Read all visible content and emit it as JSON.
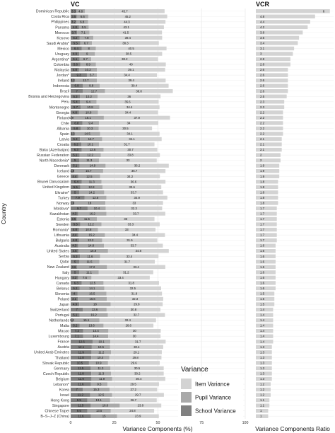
{
  "colors": {
    "item": "#d3d3d3",
    "pupil": "#a9a9a9",
    "school": "#808080",
    "ratio": "#d3d3d3",
    "grid": "#ebebeb",
    "panel": "#ffffff"
  },
  "chart_data": [
    {
      "type": "bar",
      "stacked": true,
      "orientation": "horizontal",
      "title": "VC",
      "xlabel": "Variance Components (%)",
      "ylabel": "Country",
      "xlim": [
        0,
        100
      ],
      "xticks": [
        "0",
        "25",
        "50",
        "75",
        "100"
      ],
      "legend": {
        "title": "Variance",
        "position": "bottom-right",
        "entries": [
          "Item Variance",
          "Pupil Variance",
          "School Variance"
        ]
      },
      "categories": [
        "Dominican Republic",
        "Costa Rica",
        "Philippines",
        "Panama",
        "Morocco",
        "Kosovo",
        "Saudi Arabia*",
        "Mexico",
        "Uruguay",
        "Argentina*",
        "Colombia",
        "Malaysia",
        "Jordan*",
        "Ireland",
        "Indonesia",
        "Brazil",
        "Bosnia and Herzegovina",
        "Peru",
        "Montenegro",
        "Georgia",
        "Finland",
        "Chile",
        "Albania",
        "Spain",
        "Latvia",
        "Croatia",
        "Baku (Azerbaijan)",
        "Russian Federation",
        "North Macedonia*",
        "Denmark",
        "Iceland",
        "Greece",
        "Brunei Darussalam",
        "United Kingdom",
        "Ukraine*",
        "Turkey",
        "Norway",
        "Moldova*",
        "Kazakhstan",
        "Estonia",
        "Sweden",
        "Romania*",
        "Lithuania",
        "Bulgaria",
        "Australia",
        "United States",
        "Serbia",
        "Qatar",
        "New Zealand",
        "Italy",
        "Hungary",
        "Canada",
        "Belarus",
        "Slovenia",
        "Poland",
        "Japan",
        "Switzerland",
        "Portugal",
        "Netherlands",
        "Malta",
        "Macao",
        "Luxembourg",
        "France",
        "Austria",
        "United Arab Emirates",
        "Thailand",
        "Slovak Republic",
        "Germany",
        "Czech Republic",
        "Belgium",
        "Lebanon*",
        "Korea",
        "Israel",
        "Hong Kong",
        "Singapore",
        "Chinese Taipei",
        "B–S–J–Z (China)"
      ],
      "series": [
        {
          "name": "School Variance",
          "values": [
            3.3,
            3.5,
            3.2,
            4.8,
            3.7,
            5.2,
            5.5,
            6.4,
            4.9,
            5.1,
            5.6,
            4.8,
            9.3,
            2.3,
            6.9,
            7,
            5.3,
            5.4,
            5.7,
            4.8,
            0.9,
            6.8,
            5.8,
            2.3,
            5.3,
            6.2,
            6.3,
            5.1,
            5,
            5.1,
            1.9,
            4.4,
            6.4,
            5.5,
            5,
            7.9,
            1.9,
            9.7,
            4.3,
            3.5,
            5.5,
            4.8,
            4.4,
            4.8,
            4.3,
            4.5,
            5.3,
            5,
            3.6,
            5,
            4.3,
            6.3,
            5.2,
            4,
            4.1,
            4.9,
            7,
            5.1,
            1.4,
            5.2,
            7.2,
            7.1,
            12.6,
            12.1,
            11.9,
            11.8,
            10.5,
            11.5,
            11.8,
            11.9,
            11.6,
            7,
            11.2,
            9.5,
            11.5,
            9.5,
            11.6
          ]
        },
        {
          "name": "Pupil Variance",
          "values": [
            4.8,
            6.6,
            6.8,
            5.5,
            7.1,
            7.8,
            6.7,
            8,
            9,
            6.7,
            8.9,
            10.2,
            5.7,
            12.7,
            9.8,
            12.7,
            10.2,
            9.4,
            10.8,
            10.8,
            18.1,
            9.4,
            10.3,
            14.5,
            12.7,
            10.1,
            12.6,
            12.2,
            11.3,
            14.9,
            16.7,
            12.5,
            11.3,
            12.8,
            14.2,
            12.6,
            18,
            10.4,
            16.2,
            11.5,
            12.2,
            10.8,
            15.2,
            13.2,
            14.8,
            16.9,
            11.6,
            11.5,
            17.2,
            11.1,
            7.6,
            12.5,
            14.1,
            16.5,
            16.6,
            18,
            13.6,
            16.2,
            15.1,
            13.6,
            14.4,
            14.4,
            10.1,
            10.5,
            11.2,
            10.4,
            10.9,
            11.3,
            11.3,
            11.9,
            9.5,
            15.3,
            12.5,
            13.1,
            16.6,
            13.5,
            15
          ]
        },
        {
          "name": "Item Variance",
          "values": [
            45.7,
            45.2,
            44.3,
            43.1,
            41.5,
            39.4,
            38.3,
            40.5,
            38.5,
            38.2,
            40,
            39.1,
            34.4,
            39.4,
            39.4,
            38.8,
            36,
            35.6,
            34.4,
            34.4,
            37.9,
            34,
            30.5,
            34.1,
            34.1,
            31.7,
            30.7,
            33.8,
            33,
            36.2,
            35.7,
            34.2,
            36.6,
            33.6,
            33.7,
            34.9,
            33,
            32.3,
            33.7,
            33,
            33.3,
            33,
            34.4,
            31.6,
            33.7,
            34.8,
            33.4,
            31.7,
            33.4,
            31.2,
            33.4,
            31.8,
            32.5,
            31.8,
            32.3,
            29.8,
            30.8,
            32.7,
            32.4,
            28.6,
            30,
            30,
            31.7,
            30.4,
            29.1,
            29.8,
            29.6,
            30.5,
            30.2,
            30.4,
            29.5,
            27.2,
            29.7,
            26.7,
            23.8,
            24.8,
            23.9
          ]
        }
      ]
    },
    {
      "type": "bar",
      "orientation": "horizontal",
      "title": "VCR",
      "xlabel": "Variance Components Ratio",
      "values": [
        6,
        4.8,
        4.4,
        4.2,
        3.8,
        3.5,
        3.4,
        3.1,
        3,
        2.8,
        2.8,
        2.6,
        2.6,
        2.6,
        2.6,
        2.6,
        2.5,
        2.3,
        2.3,
        2.2,
        2.2,
        2.2,
        2.2,
        2.2,
        2.1,
        2.1,
        2.1,
        2,
        2,
        1.9,
        1.9,
        1.9,
        1.8,
        1.8,
        1.8,
        1.8,
        1.8,
        1.7,
        1.7,
        1.7,
        1.7,
        1.7,
        1.7,
        1.7,
        1.6,
        1.6,
        1.6,
        1.6,
        1.6,
        1.6,
        1.6,
        1.6,
        1.6,
        1.5,
        1.5,
        1.5,
        1.4,
        1.4,
        1.4,
        1.4,
        1.4,
        1.4,
        1.4,
        1.3,
        1.3,
        1.3,
        1.3,
        1.3,
        1.3,
        1.3,
        1.2,
        1.2,
        1.2,
        1.1,
        1.1,
        1,
        1
      ]
    }
  ]
}
